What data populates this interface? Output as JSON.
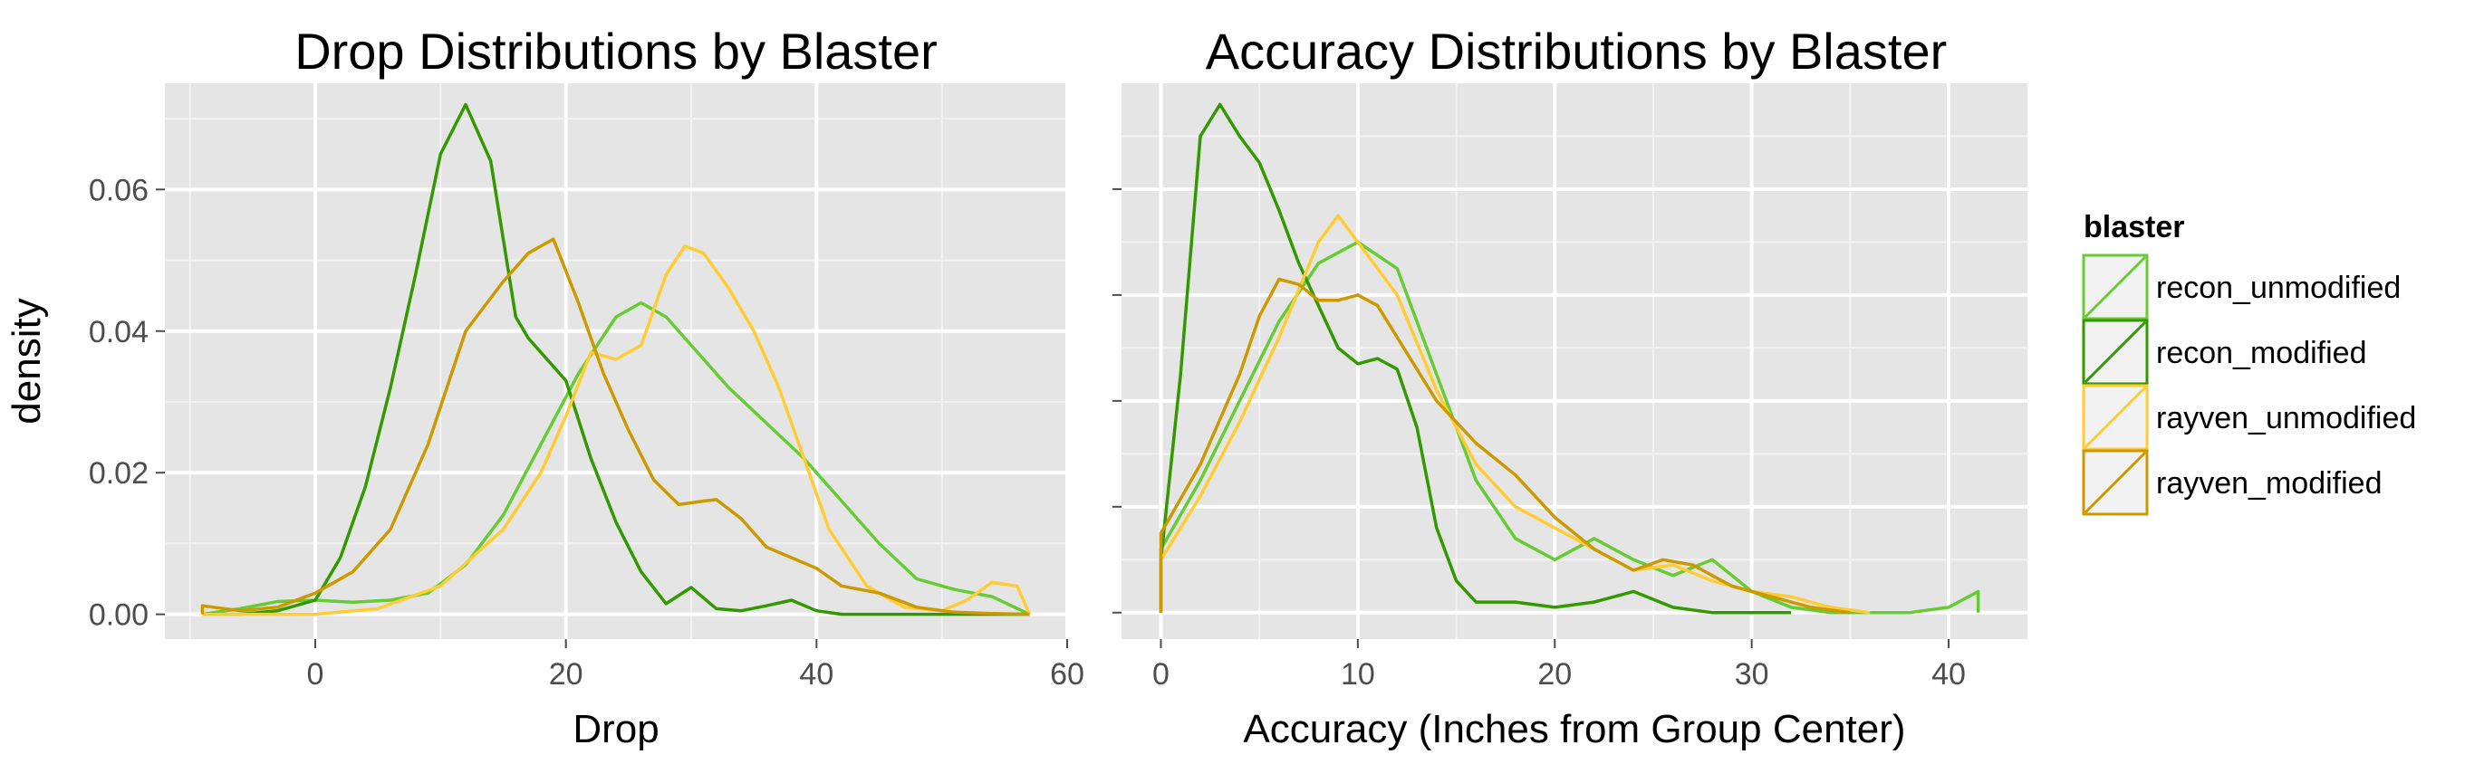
{
  "chart_data": [
    {
      "type": "line",
      "title": "Drop Distributions by Blaster",
      "xlabel": "Drop",
      "ylabel": "density",
      "xlim": [
        -12,
        60
      ],
      "ylim": [
        -0.0035,
        0.075
      ],
      "xticks": [
        0,
        20,
        40,
        60
      ],
      "xtick_labels": [
        "0",
        "20",
        "40",
        "60"
      ],
      "yticks": [
        0,
        0.02,
        0.04,
        0.06
      ],
      "ytick_labels": [
        "0.00",
        "0.02",
        "0.04",
        "0.06"
      ],
      "grid": true,
      "series": [
        {
          "name": "recon_unmodified",
          "color": "#66cc33",
          "x": [
            -9,
            -6,
            -3,
            0,
            3,
            6,
            9,
            12,
            15,
            18,
            21,
            24,
            26,
            28,
            30,
            33,
            36,
            39,
            42,
            45,
            48,
            51,
            54,
            57
          ],
          "y": [
            0,
            0.0008,
            0.0018,
            0.002,
            0.0017,
            0.002,
            0.003,
            0.007,
            0.014,
            0.024,
            0.034,
            0.042,
            0.044,
            0.042,
            0.038,
            0.032,
            0.027,
            0.022,
            0.016,
            0.01,
            0.005,
            0.0035,
            0.0025,
            0
          ]
        },
        {
          "name": "recon_modified",
          "color": "#339900",
          "x": [
            -9,
            -6,
            -3,
            0,
            2,
            4,
            6,
            8,
            10,
            12,
            14,
            16,
            17,
            18,
            20,
            22,
            24,
            26,
            28,
            30,
            32,
            34,
            36,
            38,
            40,
            42,
            45,
            50,
            55,
            57
          ],
          "y": [
            0,
            0,
            0.0005,
            0.002,
            0.008,
            0.018,
            0.032,
            0.048,
            0.065,
            0.072,
            0.064,
            0.042,
            0.039,
            0.037,
            0.033,
            0.022,
            0.013,
            0.006,
            0.0015,
            0.0038,
            0.0008,
            0.0005,
            0.0012,
            0.002,
            0.0005,
            0,
            0,
            0,
            0,
            0
          ]
        },
        {
          "name": "rayven_unmodified",
          "color": "#ffcc33",
          "x": [
            -9,
            -3,
            0,
            5,
            10,
            15,
            18,
            20,
            22,
            24,
            26,
            28,
            29.5,
            31,
            33,
            35,
            37,
            39,
            41,
            44,
            47,
            50,
            52,
            54,
            56,
            57
          ],
          "y": [
            0,
            0,
            0,
            0.0008,
            0.004,
            0.012,
            0.02,
            0.028,
            0.037,
            0.036,
            0.038,
            0.048,
            0.052,
            0.051,
            0.046,
            0.04,
            0.032,
            0.022,
            0.012,
            0.004,
            0.001,
            0.0005,
            0.002,
            0.0045,
            0.004,
            0
          ]
        },
        {
          "name": "rayven_modified",
          "color": "#cc9900",
          "x": [
            -9,
            -6,
            -3,
            0,
            3,
            6,
            9,
            12,
            15,
            17,
            19,
            21,
            23,
            25,
            27,
            29,
            31,
            32,
            34,
            36,
            38,
            40,
            42,
            45,
            48,
            51,
            54,
            57
          ],
          "y": [
            0.0012,
            0.0005,
            0.001,
            0.003,
            0.006,
            0.012,
            0.024,
            0.04,
            0.047,
            0.051,
            0.053,
            0.044,
            0.034,
            0.026,
            0.019,
            0.0155,
            0.016,
            0.0162,
            0.0135,
            0.0095,
            0.008,
            0.0065,
            0.004,
            0.003,
            0.001,
            0.0003,
            0.0001,
            0
          ]
        }
      ]
    },
    {
      "type": "line",
      "title": "Accuracy Distributions by Blaster",
      "xlabel": "Accuracy (Inches from Group Center)",
      "ylabel": "",
      "xlim": [
        -2,
        44
      ],
      "ylim": [
        -0.005,
        0.1
      ],
      "xticks": [
        0,
        10,
        20,
        30,
        40
      ],
      "xtick_labels": [
        "0",
        "10",
        "20",
        "30",
        "40"
      ],
      "yticks": [
        0,
        0.02,
        0.04,
        0.06,
        0.08
      ],
      "ytick_labels": [
        "",
        "",
        "",
        "",
        ""
      ],
      "grid": true,
      "series": [
        {
          "name": "recon_unmodified",
          "color": "#66cc33",
          "x": [
            0,
            2,
            4,
            6,
            8,
            10,
            12,
            14,
            16,
            18,
            20,
            22,
            24,
            26,
            28,
            30,
            32,
            34,
            36,
            38,
            40,
            41.5
          ],
          "y": [
            0.012,
            0.025,
            0.04,
            0.055,
            0.066,
            0.07,
            0.065,
            0.045,
            0.025,
            0.014,
            0.01,
            0.014,
            0.01,
            0.007,
            0.01,
            0.004,
            0.001,
            0,
            0,
            0,
            0.001,
            0.004
          ]
        },
        {
          "name": "recon_modified",
          "color": "#339900",
          "x": [
            0,
            1,
            2,
            3,
            4,
            5,
            6,
            7,
            8,
            9,
            10,
            11,
            12,
            13,
            14,
            15,
            16,
            18,
            20,
            22,
            24,
            26,
            28,
            30,
            32
          ],
          "y": [
            0.01,
            0.045,
            0.09,
            0.096,
            0.09,
            0.085,
            0.076,
            0.066,
            0.058,
            0.05,
            0.047,
            0.048,
            0.046,
            0.035,
            0.016,
            0.006,
            0.002,
            0.002,
            0.001,
            0.002,
            0.004,
            0.001,
            0,
            0,
            0
          ]
        },
        {
          "name": "rayven_unmodified",
          "color": "#ffcc33",
          "x": [
            0,
            2,
            4,
            6,
            8,
            9,
            10,
            12,
            14,
            16,
            18,
            20,
            22,
            24,
            26,
            28,
            30,
            32,
            34,
            36
          ],
          "y": [
            0.01,
            0.022,
            0.036,
            0.052,
            0.07,
            0.075,
            0.07,
            0.06,
            0.042,
            0.028,
            0.02,
            0.016,
            0.012,
            0.008,
            0.009,
            0.006,
            0.004,
            0.003,
            0.001,
            0
          ]
        },
        {
          "name": "rayven_modified",
          "color": "#cc9900",
          "x": [
            0,
            2,
            4,
            5,
            6,
            7,
            8,
            9,
            10,
            11,
            12,
            14,
            16,
            18,
            20,
            22,
            24,
            25.5,
            27,
            29,
            31,
            33,
            35
          ],
          "y": [
            0.015,
            0.028,
            0.045,
            0.056,
            0.063,
            0.062,
            0.059,
            0.059,
            0.06,
            0.058,
            0.052,
            0.04,
            0.032,
            0.026,
            0.018,
            0.012,
            0.008,
            0.01,
            0.009,
            0.005,
            0.003,
            0.001,
            0
          ]
        }
      ]
    }
  ],
  "legend": {
    "title": "blaster",
    "items": [
      {
        "label": "recon_unmodified",
        "color": "#66cc33"
      },
      {
        "label": "recon_modified",
        "color": "#339900"
      },
      {
        "label": "rayven_unmodified",
        "color": "#ffcc33"
      },
      {
        "label": "rayven_modified",
        "color": "#cc9900"
      }
    ]
  }
}
